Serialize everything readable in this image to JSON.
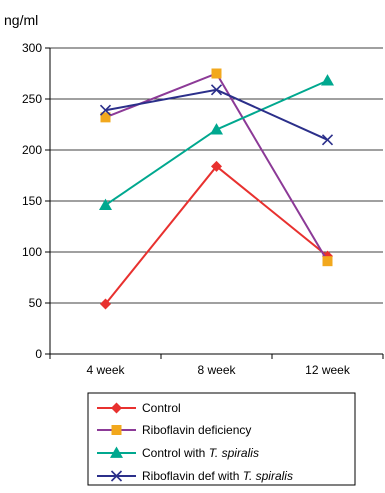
{
  "chart_data": {
    "type": "line",
    "ylabel": "ng/ml",
    "categories": [
      "4 week",
      "8 week",
      "12 week"
    ],
    "ylim": [
      0,
      300
    ],
    "yticks": [
      0,
      50,
      100,
      150,
      200,
      250,
      300
    ],
    "grid": "horizontal",
    "legend_position": "bottom",
    "series": [
      {
        "name": "Control",
        "values": [
          49,
          184,
          96
        ],
        "color": "#e8312f",
        "marker": "diamond"
      },
      {
        "name": "Riboflavin deficiency",
        "values": [
          232,
          275,
          91
        ],
        "color": "#8c3a97",
        "marker": "square",
        "marker_color": "#f2a81d"
      },
      {
        "name": "Control with T. spiralis",
        "name_plain": "Control with ",
        "name_italic": "T. spiralis",
        "values": [
          146,
          220,
          268
        ],
        "color": "#00a88f",
        "marker": "triangle"
      },
      {
        "name": "Riboflavin def with T. spiralis",
        "name_plain": "Riboflavin def with ",
        "name_italic": "T. spiralis",
        "values": [
          239,
          259,
          210
        ],
        "color": "#2b2f8a",
        "marker": "x"
      }
    ]
  }
}
